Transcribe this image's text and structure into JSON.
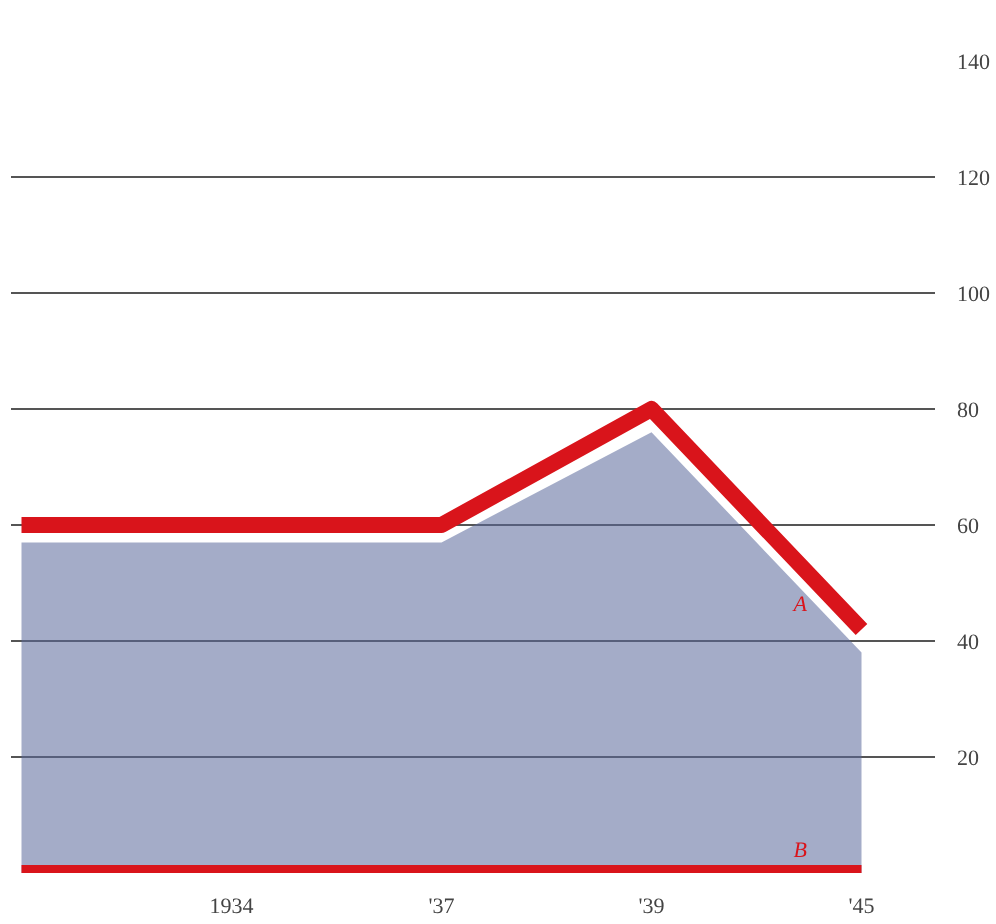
{
  "chart_data": {
    "type": "line",
    "categories": [
      null,
      "1934",
      "'37",
      "'39",
      "'45"
    ],
    "series": [
      {
        "type": "area",
        "color": "#5a679a",
        "values": [
          57,
          57,
          57,
          76,
          38
        ]
      },
      {
        "name": "A",
        "color": "#d9141b",
        "values": [
          60,
          60,
          60,
          80,
          42
        ]
      },
      {
        "name": "B",
        "color": "#d9141b",
        "values": [
          0,
          0,
          0,
          0,
          0
        ]
      }
    ],
    "ylim": [
      0,
      140
    ],
    "yticks": [
      20,
      40,
      60,
      80,
      100,
      120,
      140
    ],
    "grid": "y"
  }
}
